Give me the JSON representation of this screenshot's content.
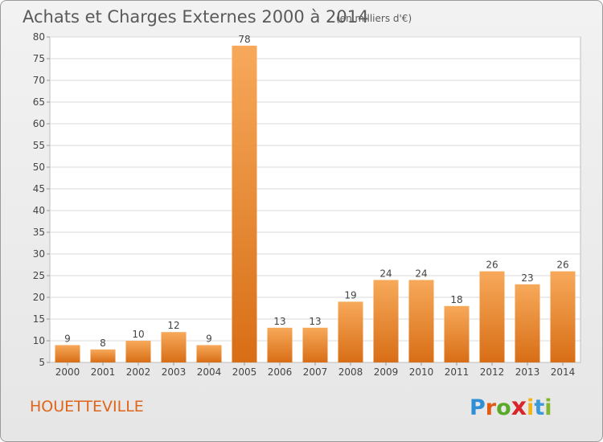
{
  "header": {
    "title": "Achats et Charges Externes 2000 à 2014",
    "unit": "(en milliers d'€)"
  },
  "commune": "HOUETTEVILLE",
  "logo": {
    "letters": [
      "P",
      "r",
      "o",
      "x",
      "i",
      "t",
      "i"
    ],
    "colors": [
      "#2f8fd6",
      "#e35b12",
      "#5aaa2a",
      "#d8262b",
      "#f2b31b",
      "#3b9ad9",
      "#82b62c"
    ]
  },
  "chart_data": {
    "type": "bar",
    "categories": [
      "2000",
      "2001",
      "2002",
      "2003",
      "2004",
      "2005",
      "2006",
      "2007",
      "2008",
      "2009",
      "2010",
      "2011",
      "2012",
      "2013",
      "2014"
    ],
    "values": [
      9,
      8,
      10,
      12,
      9,
      78,
      13,
      13,
      19,
      24,
      24,
      18,
      26,
      23,
      26
    ],
    "ylim": [
      5,
      80
    ],
    "yticks": [
      5,
      10,
      15,
      20,
      25,
      30,
      35,
      40,
      45,
      50,
      55,
      60,
      65,
      70,
      75,
      80
    ],
    "grid": true,
    "bar_color": "#f08a2a"
  }
}
